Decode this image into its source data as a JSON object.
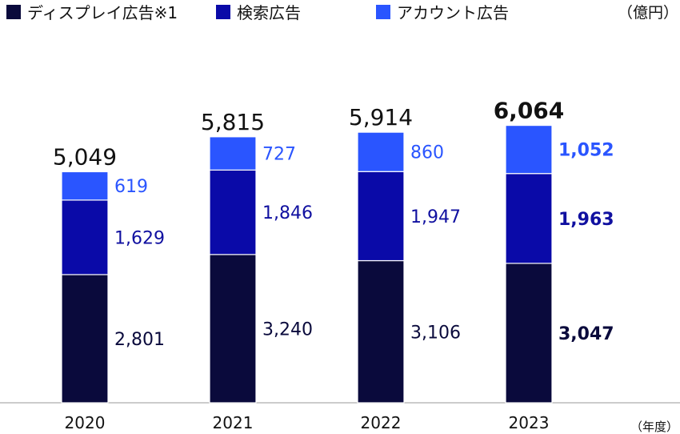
{
  "chart_data": {
    "type": "bar",
    "stacked": true,
    "categories": [
      "2020",
      "2021",
      "2022",
      "2023"
    ],
    "series": [
      {
        "name": "ディスプレイ広告※1",
        "values": [
          2801,
          3240,
          3106,
          3047
        ],
        "color": "#0a0a3c",
        "label_color": "#0a0a3c"
      },
      {
        "name": "検索広告",
        "values": [
          1629,
          1846,
          1947,
          1963
        ],
        "color": "#0a0aa8",
        "label_color": "#1010a0"
      },
      {
        "name": "アカウント広告",
        "values": [
          619,
          727,
          860,
          1052
        ],
        "color": "#2a55ff",
        "label_color": "#2a55ff"
      }
    ],
    "totals": [
      5049,
      5815,
      5914,
      6064
    ],
    "value_labels": [
      [
        "2,801",
        "3,240",
        "3,106",
        "3,047"
      ],
      [
        "1,629",
        "1,846",
        "1,947",
        "1,963"
      ],
      [
        "619",
        "727",
        "860",
        "1,052"
      ]
    ],
    "total_labels": [
      "5,049",
      "5,815",
      "5,914",
      "6,064"
    ],
    "highlight_category": "2023",
    "unit_label": "（億円）",
    "xlabel": "（年度）",
    "ylabel": "",
    "ylim": [
      0,
      6650
    ],
    "legend_position": "top-left",
    "grid": false
  }
}
